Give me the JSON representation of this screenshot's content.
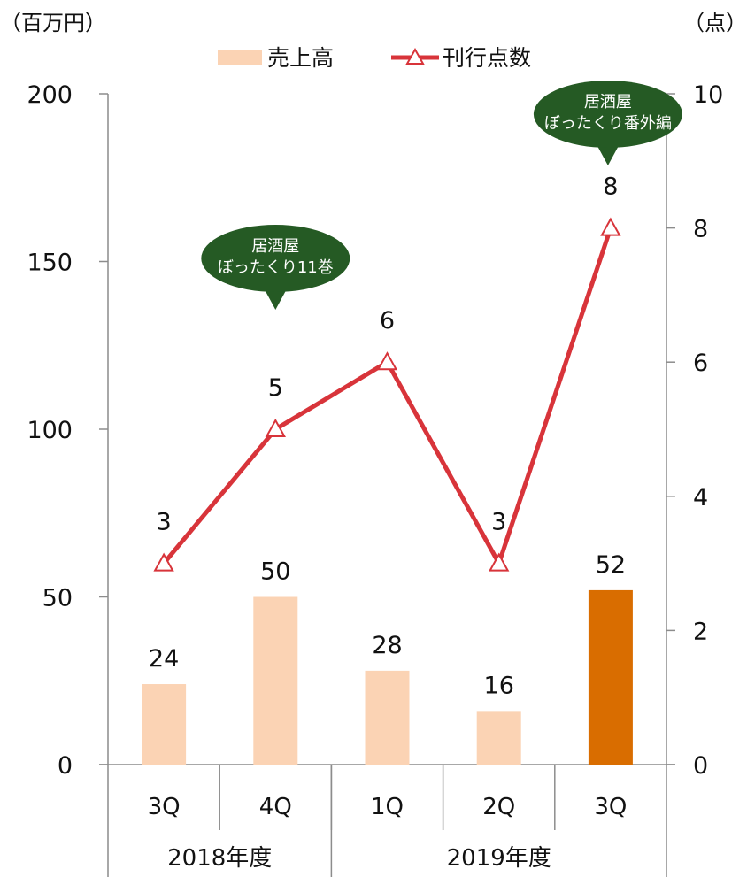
{
  "chart_data": {
    "type": "bar",
    "categories": [
      "3Q",
      "4Q",
      "1Q",
      "2Q",
      "3Q"
    ],
    "fiscal_years": [
      {
        "label": "2018年度",
        "span": 2
      },
      {
        "label": "2019年度",
        "span": 3
      }
    ],
    "series": [
      {
        "name": "売上高",
        "type": "bar",
        "axis": "left",
        "values": [
          24,
          50,
          28,
          16,
          52
        ],
        "color": "#FBD3B4",
        "highlight_index": 4,
        "highlight_color": "#D96D00"
      },
      {
        "name": "刊行点数",
        "type": "line",
        "axis": "right",
        "values": [
          3,
          5,
          6,
          3,
          8
        ],
        "color": "#D8343A",
        "marker": "triangle-open"
      }
    ],
    "left_unit": "（百万円）",
    "right_unit": "（点）",
    "ylim_left": [
      0,
      200
    ],
    "yticks_left": [
      0,
      50,
      100,
      150,
      200
    ],
    "ylim_right": [
      0,
      10
    ],
    "yticks_right": [
      0,
      2,
      4,
      6,
      8,
      10
    ],
    "legend_position": "top-center",
    "grid": false,
    "callouts": [
      {
        "index": 1,
        "lines": [
          "居酒屋",
          "ぼったくり11巻"
        ],
        "color": "#255A24"
      },
      {
        "index": 4,
        "lines": [
          "居酒屋",
          "ぼったくり番外編"
        ],
        "color": "#255A24"
      }
    ]
  }
}
